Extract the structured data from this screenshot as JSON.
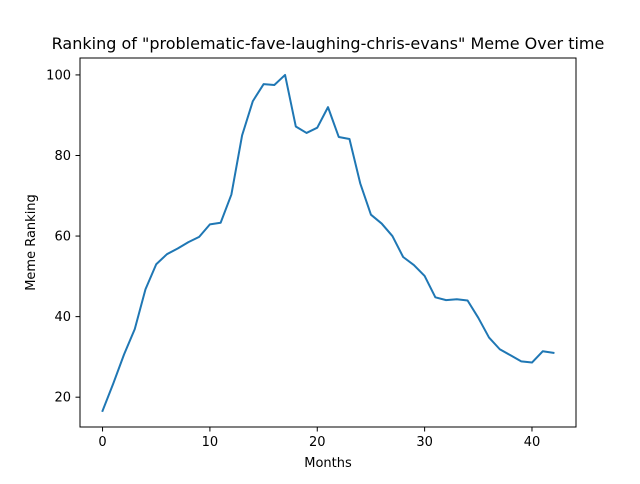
{
  "chart_data": {
    "type": "line",
    "title": "Ranking of \"problematic-fave-laughing-chris-evans\" Meme Over time",
    "xlabel": "Months",
    "ylabel": "Meme Ranking",
    "xlim": [
      -2.1,
      44.1
    ],
    "ylim": [
      12.6,
      104.2
    ],
    "xticks": [
      0,
      10,
      20,
      30,
      40
    ],
    "yticks": [
      20,
      40,
      60,
      80,
      100
    ],
    "grid": false,
    "legend": "none",
    "series": [
      {
        "color": "#1f77b4",
        "x": [
          0,
          1,
          2,
          3,
          4,
          5,
          6,
          7,
          8,
          9,
          10,
          11,
          12,
          13,
          14,
          15,
          16,
          17,
          18,
          19,
          20,
          21,
          22,
          23,
          24,
          25,
          26,
          27,
          28,
          29,
          30,
          31,
          32,
          33,
          34,
          35,
          36,
          37,
          38,
          39,
          40,
          41,
          42
        ],
        "values": [
          16.6,
          23.4,
          30.6,
          36.9,
          46.8,
          53.0,
          55.5,
          56.9,
          58.5,
          59.8,
          62.9,
          63.3,
          70.3,
          85.0,
          93.5,
          97.7,
          97.5,
          100.0,
          87.2,
          85.6,
          86.9,
          92.0,
          84.6,
          84.1,
          73.1,
          65.3,
          63.1,
          60.0,
          54.8,
          52.8,
          50.1,
          44.8,
          44.1,
          44.3,
          44.0,
          39.7,
          34.8,
          31.9,
          30.4,
          28.9,
          28.6,
          31.4,
          31.0
        ]
      }
    ]
  }
}
